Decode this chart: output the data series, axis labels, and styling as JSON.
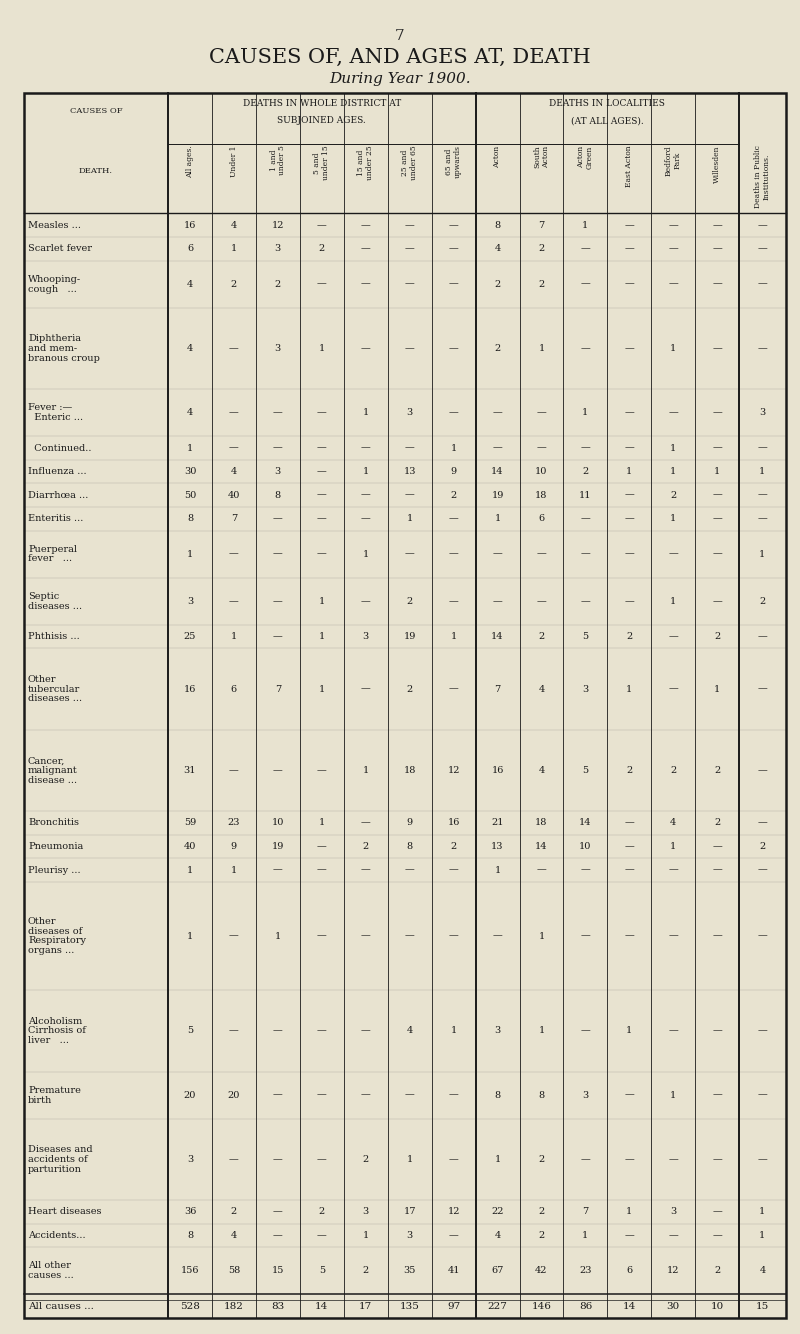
{
  "page_number": "7",
  "title": "CAUSES OF, AND AGES AT, DEATH",
  "subtitle": "During Year 1900.",
  "bg_color": "#e8e3d0",
  "col_headers": [
    "All ages.",
    "Under 1",
    "1 and\nunder 5",
    "5 and\nunder 15",
    "15 and\nunder 25",
    "25 and\nunder 65",
    "65 and\nupwards",
    "Acton",
    "South\nActon",
    "Acton\nGreen",
    "East Acton",
    "Bedford\nPark",
    "Willesden",
    "Deaths in Public\nInstitutions."
  ],
  "row_labels": [
    "Measles ...",
    "Scarlet fever",
    "Whooping-\ncough   ...",
    "Diphtheria\nand mem-\nbranous croup",
    "Fever :—\n  Enteric ...",
    "  Continued..",
    "Influenza ...",
    "Diarrhœa ...",
    "Enteritis ...",
    "Puerperal\nfever   ...",
    "Septic\ndiseases ...",
    "Phthisis ...",
    "Other\ntubercular\ndiseases ...",
    "Cancer,\nmalignant\ndisease ...",
    "Bronchitis",
    "Pneumonia",
    "Pleurisy ...",
    "Other\ndiseases of\nRespiratory\norgans ...",
    "Alcoholism\nCirrhosis of\nliver   ...",
    "Premature\nbirth",
    "Diseases and\naccidents of\nparturition",
    "Heart diseases",
    "Accidents...",
    "All other\ncauses ...",
    "All causes ..."
  ],
  "data": [
    [
      "16",
      "4",
      "12",
      "—",
      "—",
      "—",
      "—",
      "8",
      "7",
      "1",
      "—",
      "—",
      "—",
      "—"
    ],
    [
      "6",
      "1",
      "3",
      "2",
      "—",
      "—",
      "—",
      "4",
      "2",
      "—",
      "—",
      "—",
      "—",
      "—"
    ],
    [
      "4",
      "2",
      "2",
      "—",
      "—",
      "—",
      "—",
      "2",
      "2",
      "—",
      "—",
      "—",
      "—",
      "—"
    ],
    [
      "4",
      "—",
      "3",
      "1",
      "—",
      "—",
      "—",
      "2",
      "1",
      "—",
      "—",
      "1",
      "—",
      "—"
    ],
    [
      "4",
      "—",
      "—",
      "—",
      "1",
      "3",
      "—",
      "—",
      "—",
      "1",
      "—",
      "—",
      "—",
      "3"
    ],
    [
      "1",
      "—",
      "—",
      "—",
      "—",
      "—",
      "1",
      "—",
      "—",
      "—",
      "—",
      "1",
      "—",
      "—"
    ],
    [
      "30",
      "4",
      "3",
      "—",
      "1",
      "13",
      "9",
      "14",
      "10",
      "2",
      "1",
      "1",
      "1",
      "1"
    ],
    [
      "50",
      "40",
      "8",
      "—",
      "—",
      "—",
      "2",
      "19",
      "18",
      "11",
      "—",
      "2",
      "—",
      "—"
    ],
    [
      "8",
      "7",
      "—",
      "—",
      "—",
      "1",
      "—",
      "1",
      "6",
      "—",
      "—",
      "1",
      "—",
      "—"
    ],
    [
      "1",
      "—",
      "—",
      "—",
      "1",
      "—",
      "—",
      "—",
      "—",
      "—",
      "—",
      "—",
      "—",
      "1"
    ],
    [
      "3",
      "—",
      "—",
      "1",
      "—",
      "2",
      "—",
      "—",
      "—",
      "—",
      "—",
      "1",
      "—",
      "2"
    ],
    [
      "25",
      "1",
      "—",
      "1",
      "3",
      "19",
      "1",
      "14",
      "2",
      "5",
      "2",
      "—",
      "2",
      "—"
    ],
    [
      "16",
      "6",
      "7",
      "1",
      "—",
      "2",
      "—",
      "7",
      "4",
      "3",
      "1",
      "—",
      "1",
      "—"
    ],
    [
      "31",
      "—",
      "—",
      "—",
      "1",
      "18",
      "12",
      "16",
      "4",
      "5",
      "2",
      "2",
      "2",
      "—"
    ],
    [
      "59",
      "23",
      "10",
      "1",
      "—",
      "9",
      "16",
      "21",
      "18",
      "14",
      "—",
      "4",
      "2",
      "—"
    ],
    [
      "40",
      "9",
      "19",
      "—",
      "2",
      "8",
      "2",
      "13",
      "14",
      "10",
      "—",
      "1",
      "—",
      "2"
    ],
    [
      "1",
      "1",
      "—",
      "—",
      "—",
      "—",
      "—",
      "1",
      "—",
      "—",
      "—",
      "—",
      "—",
      "—"
    ],
    [
      "1",
      "—",
      "1",
      "—",
      "—",
      "—",
      "—",
      "—",
      "1",
      "—",
      "—",
      "—",
      "—",
      "—"
    ],
    [
      "5",
      "—",
      "—",
      "—",
      "—",
      "4",
      "1",
      "3",
      "1",
      "—",
      "1",
      "—",
      "—",
      "—"
    ],
    [
      "20",
      "20",
      "—",
      "—",
      "—",
      "—",
      "—",
      "8",
      "8",
      "3",
      "—",
      "1",
      "—",
      "—"
    ],
    [
      "3",
      "—",
      "—",
      "—",
      "2",
      "1",
      "—",
      "1",
      "2",
      "—",
      "—",
      "—",
      "—",
      "—"
    ],
    [
      "36",
      "2",
      "—",
      "2",
      "3",
      "17",
      "12",
      "22",
      "2",
      "7",
      "1",
      "3",
      "—",
      "1"
    ],
    [
      "8",
      "4",
      "—",
      "—",
      "1",
      "3",
      "—",
      "4",
      "2",
      "1",
      "—",
      "—",
      "—",
      "1"
    ],
    [
      "156",
      "58",
      "15",
      "5",
      "2",
      "35",
      "41",
      "67",
      "42",
      "23",
      "6",
      "12",
      "2",
      "4"
    ],
    [
      "528",
      "182",
      "83",
      "14",
      "17",
      "135",
      "97",
      "227",
      "146",
      "86",
      "14",
      "30",
      "10",
      "15"
    ]
  ],
  "is_total_row": [
    false,
    false,
    false,
    false,
    false,
    false,
    false,
    false,
    false,
    false,
    false,
    false,
    false,
    false,
    false,
    false,
    false,
    false,
    false,
    false,
    false,
    false,
    false,
    false,
    true
  ]
}
